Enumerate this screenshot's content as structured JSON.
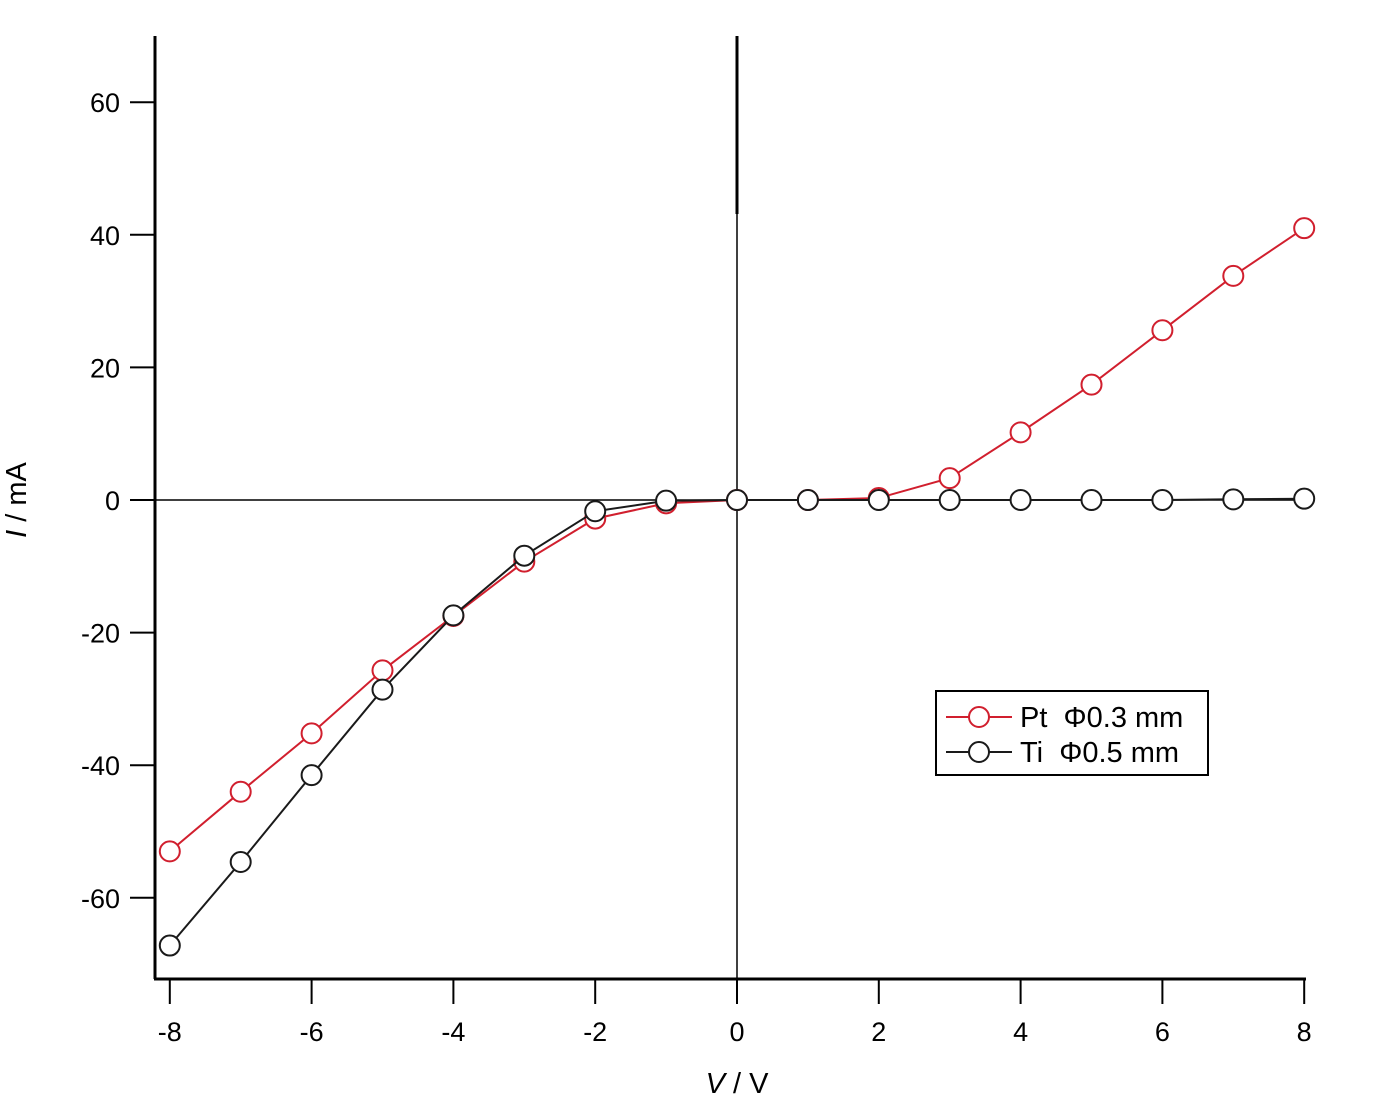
{
  "chart_data": {
    "type": "line",
    "xlabel": {
      "var": "V",
      "unit": "V"
    },
    "ylabel": {
      "var": "I",
      "unit": "mA"
    },
    "xlim": [
      -8.2,
      8
    ],
    "ylim": [
      -72,
      70
    ],
    "xticks": [
      -8,
      -6,
      -4,
      -2,
      0,
      2,
      4,
      6,
      8
    ],
    "yticks": [
      -60,
      -40,
      -20,
      0,
      20,
      40,
      60
    ],
    "legend_position": "center-right",
    "x": [
      -8,
      -7,
      -6,
      -5,
      -4,
      -3,
      -2,
      -1,
      0,
      1,
      2,
      3,
      4,
      5,
      6,
      7,
      8
    ],
    "series": [
      {
        "name": "Pt  Φ0.3 mm",
        "color": "#d11f2e",
        "values": [
          -53,
          -44,
          -35.2,
          -25.7,
          -17.5,
          -9.3,
          -2.8,
          -0.5,
          0,
          0,
          0.3,
          3.3,
          10.2,
          17.4,
          25.6,
          33.8,
          41
        ]
      },
      {
        "name": "Ti  Φ0.5 mm",
        "color": "#1a1a1a",
        "values": [
          -67.2,
          -54.6,
          -41.5,
          -28.6,
          -17.4,
          -8.4,
          -1.7,
          -0.1,
          0,
          0,
          0,
          0,
          0,
          0,
          0,
          0.1,
          0.2
        ]
      }
    ]
  }
}
